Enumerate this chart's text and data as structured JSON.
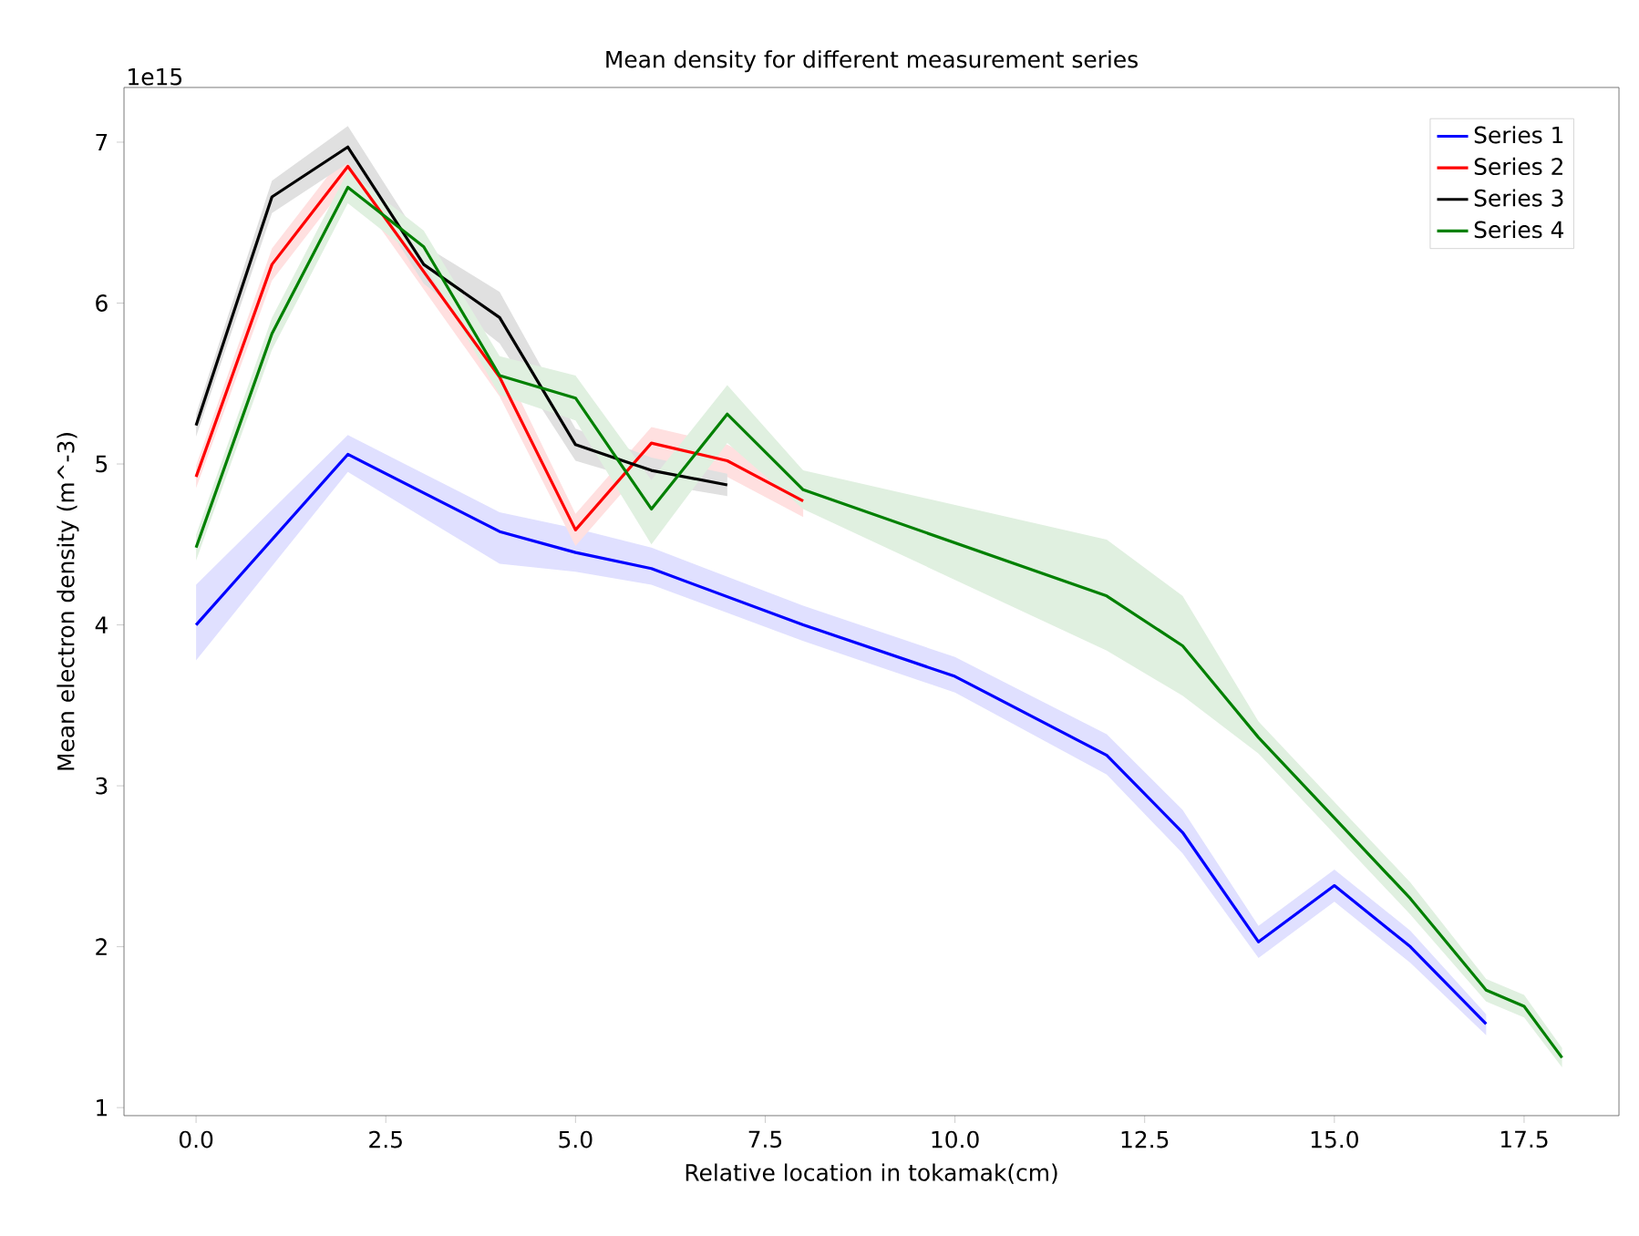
{
  "chart_data": {
    "type": "line",
    "title": "Mean density for different measurement series",
    "xlabel": "Relative location in tokamak(cm)",
    "ylabel": "Mean electron density (m^-3)",
    "annotations": [
      "1e15"
    ],
    "xlim": [
      -0.95,
      18.75
    ],
    "ylim": [
      0.95,
      7.34
    ],
    "xticks": [
      {
        "value": 0,
        "label": "0.0"
      },
      {
        "value": 2.5,
        "label": "2.5"
      },
      {
        "value": 5,
        "label": "5.0"
      },
      {
        "value": 7.5,
        "label": "7.5"
      },
      {
        "value": 10,
        "label": "10.0"
      },
      {
        "value": 12.5,
        "label": "12.5"
      },
      {
        "value": 15,
        "label": "15.0"
      },
      {
        "value": 17.5,
        "label": "17.5"
      }
    ],
    "yticks": [
      1,
      2,
      3,
      4,
      5,
      6,
      7
    ],
    "grid": false,
    "legend": "top right",
    "line_style": "solid",
    "series": [
      {
        "name": "Series 1",
        "color": "#0000ff",
        "x": [
          0,
          2,
          4,
          5,
          6,
          8,
          10,
          12,
          13,
          14,
          15,
          16,
          17
        ],
        "values": [
          4.0,
          5.06,
          4.58,
          4.45,
          4.35,
          4.0,
          3.68,
          3.19,
          2.71,
          2.03,
          2.38,
          2.0,
          1.52
        ],
        "lower": [
          3.78,
          4.95,
          4.38,
          4.33,
          4.25,
          3.9,
          3.58,
          3.07,
          2.58,
          1.93,
          2.28,
          1.9,
          1.45
        ],
        "upper": [
          4.25,
          5.18,
          4.7,
          4.6,
          4.48,
          4.12,
          3.8,
          3.32,
          2.85,
          2.13,
          2.48,
          2.1,
          1.58
        ]
      },
      {
        "name": "Series 2",
        "color": "#ff0000",
        "x": [
          0,
          1,
          2,
          4,
          5,
          6,
          7,
          8
        ],
        "values": [
          4.92,
          6.24,
          6.85,
          5.54,
          4.59,
          5.13,
          5.02,
          4.77
        ],
        "lower": [
          4.85,
          6.14,
          6.75,
          5.42,
          4.49,
          5.03,
          4.92,
          4.67
        ],
        "upper": [
          4.99,
          6.34,
          6.95,
          5.66,
          4.69,
          5.23,
          5.12,
          4.87
        ]
      },
      {
        "name": "Series 3",
        "color": "#000000",
        "x": [
          0,
          1,
          2,
          3,
          4,
          5,
          6,
          7
        ],
        "values": [
          5.24,
          6.66,
          6.97,
          6.24,
          5.91,
          5.12,
          4.96,
          4.87
        ],
        "lower": [
          5.17,
          6.56,
          6.87,
          6.12,
          5.75,
          5.02,
          4.88,
          4.8
        ],
        "upper": [
          5.31,
          6.76,
          7.1,
          6.36,
          6.07,
          5.22,
          5.04,
          4.94
        ]
      },
      {
        "name": "Series 4",
        "color": "#008000",
        "x": [
          0,
          1,
          2,
          3,
          4,
          5,
          6,
          7,
          8,
          12,
          13,
          14,
          15,
          16,
          17,
          17.5,
          18
        ],
        "values": [
          4.48,
          5.81,
          6.72,
          6.35,
          5.55,
          5.41,
          4.72,
          5.31,
          4.84,
          4.18,
          3.87,
          3.3,
          2.8,
          2.3,
          1.73,
          1.63,
          1.31
        ],
        "lower": [
          4.4,
          5.71,
          6.62,
          6.25,
          5.43,
          5.27,
          4.5,
          5.13,
          4.72,
          3.84,
          3.56,
          3.2,
          2.7,
          2.2,
          1.66,
          1.56,
          1.25
        ],
        "upper": [
          4.56,
          5.91,
          6.82,
          6.45,
          5.67,
          5.55,
          4.9,
          5.49,
          4.96,
          4.53,
          4.18,
          3.4,
          2.9,
          2.4,
          1.8,
          1.7,
          1.37
        ]
      }
    ]
  }
}
